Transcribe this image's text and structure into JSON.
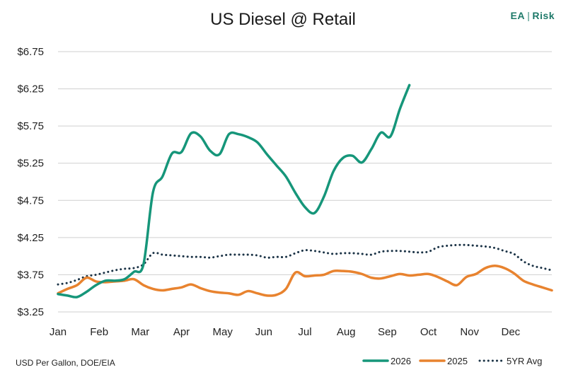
{
  "title": "US Diesel @ Retail",
  "brand": {
    "left": "EA",
    "sep": "|",
    "right": "Risk"
  },
  "source": "USD Per Gallon, DOE/EIA",
  "colors": {
    "s2026": "#16967a",
    "s2025": "#e8832f",
    "avg": "#1b3346",
    "grid": "#cfcfcf"
  },
  "chart_data": {
    "type": "line",
    "title": "US Diesel @ Retail",
    "xlabel": "",
    "ylabel": "",
    "x_categories": [
      "Jan",
      "Feb",
      "Mar",
      "Apr",
      "May",
      "Jun",
      "Jul",
      "Aug",
      "Sep",
      "Oct",
      "Nov",
      "Dec"
    ],
    "x_unit": "week index (0 = early Jan, 52 = late Dec)",
    "x_range": [
      0,
      52
    ],
    "y_ticks": [
      "$3.25",
      "$3.75",
      "$4.25",
      "$4.75",
      "$5.25",
      "$5.75",
      "$6.25",
      "$6.75"
    ],
    "ylim": [
      3.25,
      6.75
    ],
    "grid": "horizontal",
    "legend_position": "bottom-right",
    "series": [
      {
        "name": "2026",
        "style": "solid",
        "color": "#16967a",
        "x": [
          0,
          1,
          2,
          3,
          4,
          5,
          6,
          7,
          8,
          9,
          10,
          11,
          12,
          13,
          14,
          15,
          16,
          17,
          18,
          19,
          20,
          21,
          22,
          23,
          24,
          25,
          26,
          27,
          28,
          29,
          30,
          31,
          32,
          33,
          34,
          35,
          36,
          37
        ],
        "values": [
          3.49,
          3.47,
          3.45,
          3.52,
          3.61,
          3.67,
          3.67,
          3.69,
          3.79,
          3.89,
          4.86,
          5.07,
          5.38,
          5.4,
          5.65,
          5.61,
          5.42,
          5.37,
          5.64,
          5.64,
          5.6,
          5.53,
          5.37,
          5.22,
          5.07,
          4.85,
          4.66,
          4.58,
          4.8,
          5.14,
          5.32,
          5.35,
          5.26,
          5.44,
          5.66,
          5.61,
          5.98,
          6.3
        ]
      },
      {
        "name": "2025",
        "style": "solid",
        "color": "#e8832f",
        "x": [
          0,
          1,
          2,
          3,
          4,
          5,
          6,
          7,
          8,
          9,
          10,
          11,
          12,
          13,
          14,
          15,
          16,
          17,
          18,
          19,
          20,
          21,
          22,
          23,
          24,
          25,
          26,
          27,
          28,
          29,
          30,
          31,
          32,
          33,
          34,
          35,
          36,
          37,
          38,
          39,
          40,
          41,
          42,
          43,
          44,
          45,
          46,
          47,
          48,
          49,
          50,
          51,
          52
        ],
        "values": [
          3.5,
          3.56,
          3.61,
          3.71,
          3.66,
          3.65,
          3.66,
          3.67,
          3.69,
          3.61,
          3.56,
          3.54,
          3.56,
          3.58,
          3.62,
          3.57,
          3.53,
          3.51,
          3.5,
          3.48,
          3.53,
          3.5,
          3.47,
          3.48,
          3.56,
          3.78,
          3.73,
          3.74,
          3.75,
          3.8,
          3.8,
          3.79,
          3.76,
          3.71,
          3.7,
          3.73,
          3.76,
          3.74,
          3.75,
          3.76,
          3.72,
          3.66,
          3.61,
          3.72,
          3.76,
          3.84,
          3.87,
          3.84,
          3.77,
          3.67,
          3.62,
          3.58,
          3.54
        ]
      },
      {
        "name": "5YR Avg",
        "style": "dotted",
        "color": "#1b3346",
        "x": [
          0,
          1,
          2,
          3,
          4,
          5,
          6,
          7,
          8,
          9,
          10,
          11,
          12,
          13,
          14,
          15,
          16,
          17,
          18,
          19,
          20,
          21,
          22,
          23,
          24,
          25,
          26,
          27,
          28,
          29,
          30,
          31,
          32,
          33,
          34,
          35,
          36,
          37,
          38,
          39,
          40,
          41,
          42,
          43,
          44,
          45,
          46,
          47,
          48,
          49,
          50,
          51,
          52
        ],
        "values": [
          3.62,
          3.64,
          3.68,
          3.73,
          3.75,
          3.78,
          3.81,
          3.83,
          3.84,
          3.89,
          4.04,
          4.02,
          4.01,
          4.0,
          3.99,
          3.99,
          3.98,
          4.0,
          4.02,
          4.02,
          4.02,
          4.01,
          3.98,
          3.99,
          3.99,
          4.04,
          4.08,
          4.07,
          4.05,
          4.03,
          4.04,
          4.04,
          4.03,
          4.02,
          4.06,
          4.07,
          4.07,
          4.06,
          4.05,
          4.06,
          4.12,
          4.14,
          4.15,
          4.15,
          4.14,
          4.13,
          4.11,
          4.07,
          4.03,
          3.93,
          3.87,
          3.84,
          3.81
        ]
      }
    ]
  }
}
